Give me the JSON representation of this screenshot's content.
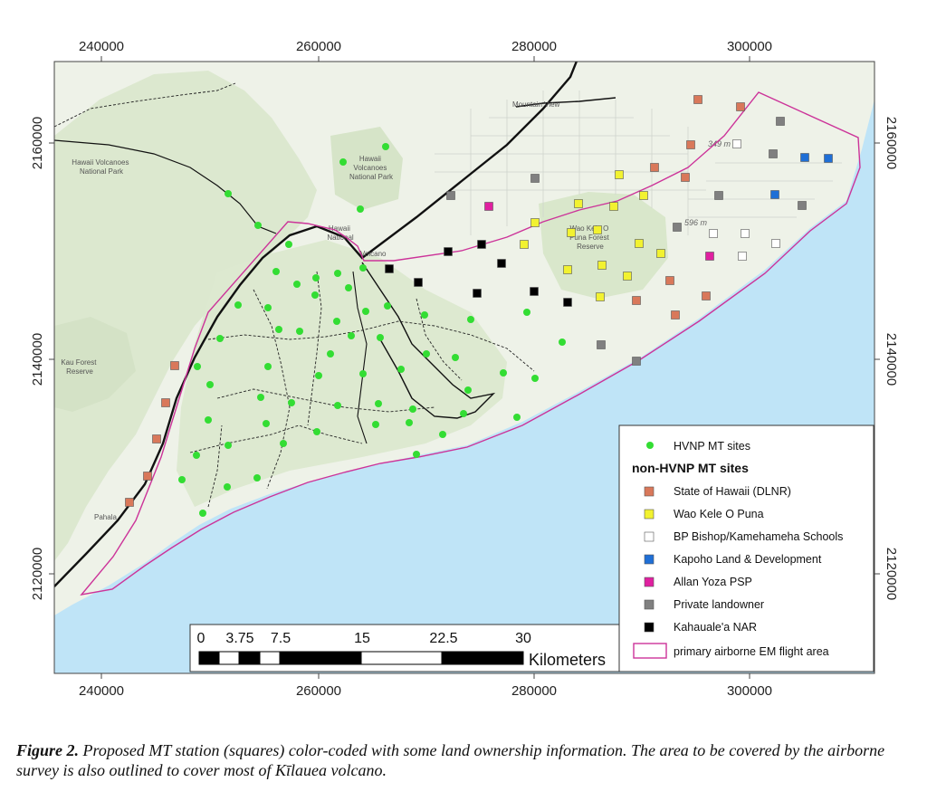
{
  "axes": {
    "x_ticks": [
      "240000",
      "260000",
      "280000",
      "300000"
    ],
    "y_ticks": [
      "2160000",
      "2140000",
      "2120000"
    ]
  },
  "places": [
    {
      "name": "place-hawaii-volcanoes-np-west",
      "lines": [
        "Hawaii Volcanoes",
        "National Park"
      ]
    },
    {
      "name": "place-hawaii-volcanoes-np-north",
      "lines": [
        "Hawaii",
        "Volcanoes",
        "National Park"
      ]
    },
    {
      "name": "place-hawaii-national",
      "lines": [
        "Hawaii",
        "National"
      ]
    },
    {
      "name": "place-volcano",
      "lines": [
        "Volcano"
      ]
    },
    {
      "name": "place-mountain-view",
      "lines": [
        "Mountain View"
      ]
    },
    {
      "name": "place-wao-kele-o-puna-reserve",
      "lines": [
        "Wao Kele O",
        "Puna Forest",
        "Reserve"
      ]
    },
    {
      "name": "place-kau-forest-reserve",
      "lines": [
        "Kau Forest",
        "Reserve"
      ]
    },
    {
      "name": "place-pahala",
      "lines": [
        "Pahala"
      ]
    }
  ],
  "elevations": [
    "349 m",
    "596 m"
  ],
  "legend": {
    "hvnp_label": "HVNP MT sites",
    "non_hvnp_heading": "non-HVNP MT sites",
    "categories": [
      {
        "key": "dlnr",
        "label": "State of Hawaii (DLNR)",
        "color": "#d9785a"
      },
      {
        "key": "wao",
        "label": "Wao Kele O Puna",
        "color": "#f2f230"
      },
      {
        "key": "bishop",
        "label": "BP Bishop/Kamehameha Schools",
        "color": "#ffffff"
      },
      {
        "key": "kapoho",
        "label": "Kapoho Land & Development",
        "color": "#1f6fd6"
      },
      {
        "key": "yoza",
        "label": "Allan Yoza PSP",
        "color": "#e020a0"
      },
      {
        "key": "private",
        "label": "Private landowner",
        "color": "#808080"
      },
      {
        "key": "nar",
        "label": "Kahauale'a NAR",
        "color": "#000000"
      }
    ],
    "flight_area_label": "primary airborne EM flight area"
  },
  "colors": {
    "hvnp_site": "#33dd33",
    "flight_area_outline": "#cc3399",
    "ocean": "#bfe4f7",
    "land": "#eef2e8",
    "park": "#dce8cf"
  },
  "scale_bar": {
    "labels": [
      "0",
      "3.75",
      "7.5",
      "15",
      "22.5",
      "30"
    ],
    "unit": "Kilometers"
  },
  "caption": {
    "label": "Figure 2.",
    "text": " Proposed MT station (squares) color-coded with some land ownership information. The area to be covered by the airborne survey is also outlined to cover most of Kīlauea volcano."
  }
}
